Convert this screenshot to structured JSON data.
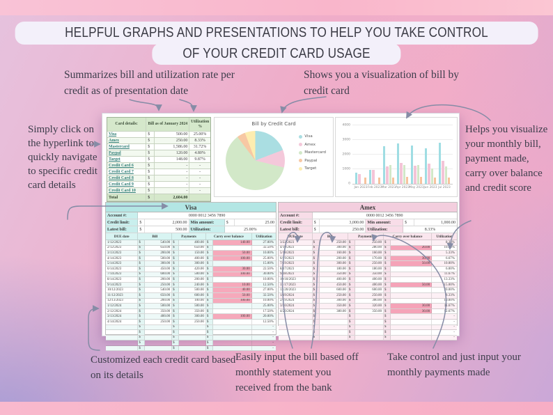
{
  "banner": {
    "line1": "HELPFUL GRAPHS AND PRESENTATIONS TO HELP YOU TAKE CONTROL",
    "line2": "OF YOUR CREDIT CARD USAGE"
  },
  "annotations": {
    "top_left": "Summarizes bill and utilization rate per credit as of presentation date",
    "top_right": "Shows you a visualization of bill by credit card",
    "left": "Simply click on the hyperlink to quickly navigate to specific credit card details",
    "right": "Helps you visualize your monthly bill, payment made, carry over balance and credit score",
    "bottom_left": "Customized each credit card based on its details",
    "bottom_mid": "Easily input the bill based off monthly statement you received from the bank",
    "bottom_right": "Take control and just input your monthly payments made"
  },
  "summary_table": {
    "headers": [
      "Card details:",
      "Bill as of January 2024",
      "Utilization %"
    ],
    "rows": [
      {
        "card": "Visa",
        "bill": "500.00",
        "util": "25.00%"
      },
      {
        "card": "Amex",
        "bill": "250.00",
        "util": "8.33%"
      },
      {
        "card": "Mastercard",
        "bill": "1,586.00",
        "util": "31.72%"
      },
      {
        "card": "Paypal",
        "bill": "120.00",
        "util": "4.80%"
      },
      {
        "card": "Target",
        "bill": "148.00",
        "util": "9.87%"
      },
      {
        "card": "Credit Card 6",
        "bill": "-",
        "util": "-"
      },
      {
        "card": "Credit Card 7",
        "bill": "-",
        "util": "-"
      },
      {
        "card": "Credit Card 8",
        "bill": "-",
        "util": "-"
      },
      {
        "card": "Credit Card 9",
        "bill": "-",
        "util": "-"
      },
      {
        "card": "Credit Card 10",
        "bill": "-",
        "util": "-"
      }
    ],
    "total": {
      "label": "Total",
      "bill": "2,604.00",
      "util": ""
    }
  },
  "chart_data": [
    {
      "type": "pie",
      "title": "Bill by Credit Card",
      "labels": [
        "Visa",
        "Amex",
        "Mastercard",
        "Paypal",
        "Target"
      ],
      "values": [
        500,
        250,
        1586,
        120,
        148
      ],
      "colors": [
        "#aadee2",
        "#f4c8da",
        "#d2e8c8",
        "#f7c8a4",
        "#fdedb0"
      ],
      "legend_position": "right"
    },
    {
      "type": "bar",
      "categories": [
        "Jan 2023",
        "Feb 2023",
        "Mar 2023",
        "Apr 2023",
        "May 2023",
        "Jun 2023",
        "Jul 2023"
      ],
      "series": [
        {
          "name": "Visa",
          "color": "#9fdde3",
          "values": [
            750,
            950,
            2550,
            2750,
            2600,
            2450,
            2800
          ]
        },
        {
          "name": "Amex",
          "color": "#f4c4d7",
          "values": [
            650,
            950,
            1200,
            1450,
            1250,
            1400,
            1550
          ]
        },
        {
          "name": "Mastercard",
          "color": "#d2e8c8",
          "values": [
            0,
            0,
            1300,
            1300,
            1300,
            1050,
            1200
          ]
        },
        {
          "name": "Paypal",
          "color": "#f7c39e",
          "values": [
            450,
            450,
            450,
            480,
            480,
            450,
            450
          ]
        }
      ],
      "ylim": [
        0,
        4000
      ],
      "yticks": [
        0,
        1000,
        2000,
        3000,
        4000
      ],
      "grid": true,
      "legend_position": "none"
    }
  ],
  "ledgers": {
    "visa": {
      "title": "Visa",
      "labels": {
        "account": "Account #:",
        "credit_limit": "Credit limit:",
        "min_amount": "Min amount:",
        "latest_bill": "Latest bill:",
        "utilization": "Utilization:"
      },
      "account": "0000 0012 3456 7890",
      "credit_limit": "2,000.00",
      "min_amount": "25.00",
      "latest_bill": "500.00",
      "utilization": "25.00%",
      "columns": [
        "DUE date",
        "Bill",
        "Payments",
        "Carry over balance",
        "Utilization"
      ],
      "rows": [
        [
          "1/12/2023",
          "540.00",
          "400.00",
          "140.00",
          "27.00%"
        ],
        [
          "2/12/2023",
          "650.00",
          "650.00",
          "",
          "32.50%"
        ],
        [
          "3/13/2023",
          "200.00",
          "150.00",
          "50.00",
          "10.00%"
        ],
        [
          "4/14/2023",
          "500.00",
          "400.00",
          "100.00",
          "25.00%"
        ],
        [
          "5/14/2023",
          "300.00",
          "300.00",
          "",
          "15.00%"
        ],
        [
          "6/14/2023",
          "450.00",
          "420.00",
          "30.00",
          "22.50%"
        ],
        [
          "7/14/2023",
          "600.00",
          "500.00",
          "100.00",
          "30.00%"
        ],
        [
          "8/14/2023",
          "200.00",
          "200.00",
          "",
          "10.00%"
        ],
        [
          "9/14/2023",
          "250.00",
          "240.00",
          "10.00",
          "12.50%"
        ],
        [
          "10/12/2023",
          "540.00",
          "500.00",
          "40.00",
          "27.00%"
        ],
        [
          "11/12/2023",
          "650.00",
          "600.00",
          "50.00",
          "32.50%"
        ],
        [
          "12/13/2023",
          "200.00",
          "100.00",
          "100.00",
          "10.00%"
        ],
        [
          "1/12/2024",
          "500.00",
          "500.00",
          "",
          "25.00%"
        ],
        [
          "2/12/2024",
          "350.00",
          "350.00",
          "",
          "17.50%"
        ],
        [
          "3/13/2024",
          "400.00",
          "300.00",
          "100.00",
          "20.00%"
        ],
        [
          "4/14/2024",
          "250.00",
          "250.00",
          "",
          "12.50%"
        ]
      ],
      "empty_rows": 5
    },
    "amex": {
      "title": "Amex",
      "labels": {
        "account": "Account #:",
        "credit_limit": "Credit limit:",
        "min_amount": "Min amount:",
        "latest_bill": "Latest bill:",
        "utilization": "Utilization:"
      },
      "account": "0000 0012 3456 7890",
      "credit_limit": "3,000.00",
      "min_amount": "1,000.00",
      "latest_bill": "250.00",
      "utilization": "8.33%",
      "columns": [
        "DUE date",
        "Bill",
        "Payments",
        "Carry over balance",
        "Utilization"
      ],
      "rows": [
        [
          "3/22/2023",
          "250.00",
          "250.00",
          "",
          "8.33%"
        ],
        [
          "4/19/2023",
          "300.00",
          "280.00",
          "20.00",
          "10.00%"
        ],
        [
          "5/18/2023",
          "160.00",
          "160.00",
          "",
          "5.33%"
        ],
        [
          "6/19/2023",
          "200.00",
          "170.00",
          "30.00",
          "6.67%"
        ],
        [
          "7/19/2023",
          "300.00",
          "250.00",
          "50.00",
          "10.00%"
        ],
        [
          "8/17/2023",
          "180.00",
          "180.00",
          "",
          "6.00%"
        ],
        [
          "9/18/2023",
          "350.00",
          "350.00",
          "",
          "11.67%"
        ],
        [
          "10/18/2023",
          "400.00",
          "400.00",
          "",
          "13.33%"
        ],
        [
          "11/17/2023",
          "450.00",
          "400.00",
          "50.00",
          "15.00%"
        ],
        [
          "12/20/2023",
          "600.00",
          "600.00",
          "",
          "20.00%"
        ],
        [
          "1/19/2024",
          "250.00",
          "250.00",
          "",
          "8.33%"
        ],
        [
          "2/19/2024",
          "300.00",
          "300.00",
          "",
          "10.00%"
        ],
        [
          "3/20/2024",
          "350.00",
          "320.00",
          "30.00",
          "11.67%"
        ],
        [
          "4/20/2024",
          "380.00",
          "350.00",
          "30.00",
          "12.67%"
        ]
      ],
      "empty_rows": 5
    }
  }
}
